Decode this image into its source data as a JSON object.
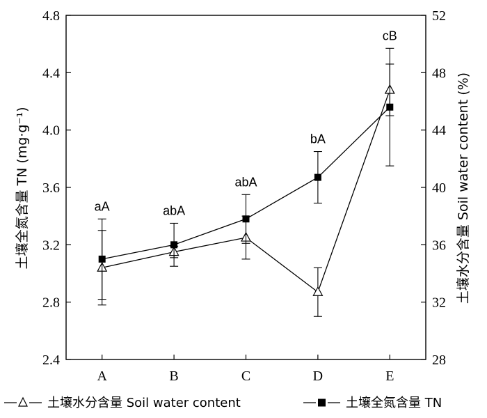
{
  "chart_data": {
    "type": "line",
    "categories": [
      "A",
      "B",
      "C",
      "D",
      "E"
    ],
    "y_left": {
      "label": "土壤全氮含量 TN (mg·g⁻¹)",
      "lim": [
        2.4,
        4.8
      ],
      "ticks": [
        "2.4",
        "2.8",
        "3.2",
        "3.6",
        "4.0",
        "4.4",
        "4.8"
      ]
    },
    "y_right": {
      "label": "土壤水分含量 Soil water content (%)",
      "lim": [
        28,
        52
      ],
      "ticks": [
        "28",
        "32",
        "36",
        "40",
        "44",
        "48",
        "52"
      ]
    },
    "series": [
      {
        "name": "土壤水分含量 Soil water content",
        "marker": "open-triangle",
        "axis": "right",
        "values": [
          34.4,
          35.5,
          36.5,
          32.7,
          46.8
        ],
        "errors": [
          2.6,
          0.4,
          1.5,
          1.7,
          1.8
        ]
      },
      {
        "name": "土壤全氮含量 TN",
        "marker": "filled-square",
        "axis": "left",
        "values": [
          3.1,
          3.2,
          3.38,
          3.67,
          4.16
        ],
        "errors": [
          0.28,
          0.15,
          0.17,
          0.18,
          0.41
        ]
      }
    ],
    "annotations": [
      "aA",
      "abA",
      "abA",
      "bA",
      "cB"
    ],
    "legend_position": "bottom",
    "grid": false
  }
}
